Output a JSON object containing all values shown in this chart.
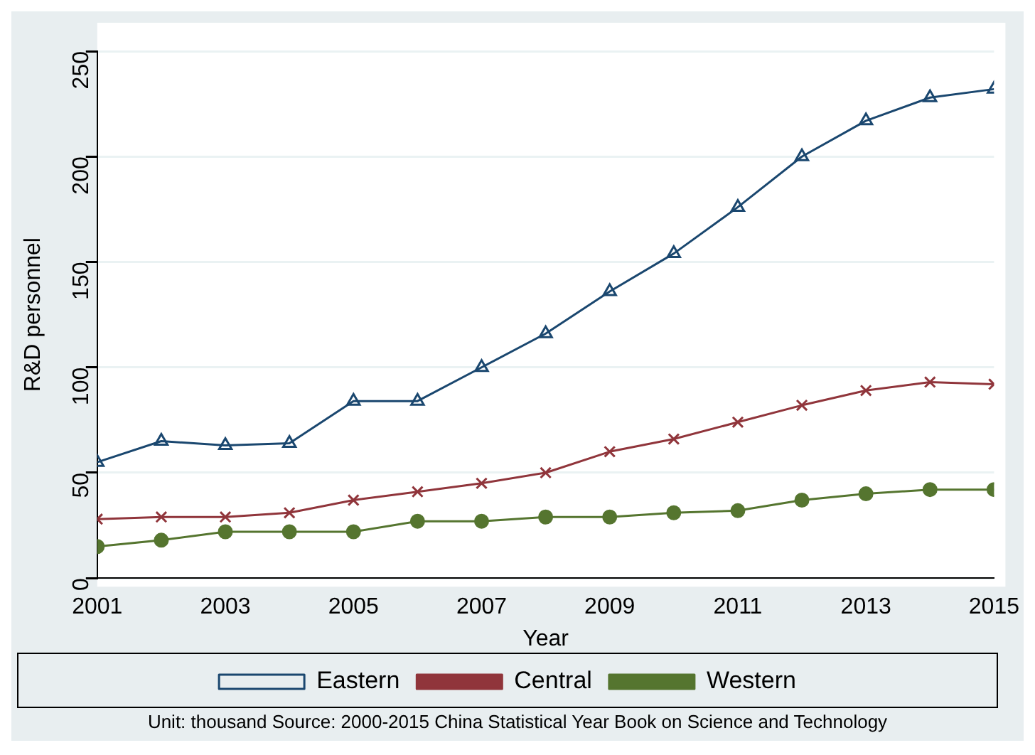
{
  "chart_data": {
    "type": "line",
    "xlabel": "Year",
    "ylabel": "R&D personnel",
    "x": [
      2001,
      2002,
      2003,
      2004,
      2005,
      2006,
      2007,
      2008,
      2009,
      2010,
      2011,
      2012,
      2013,
      2014,
      2015
    ],
    "xlim": [
      2001,
      2015
    ],
    "xticks": [
      2001,
      2003,
      2005,
      2007,
      2009,
      2011,
      2013,
      2015
    ],
    "ylim": [
      0,
      250
    ],
    "yticks": [
      0,
      50,
      100,
      150,
      200,
      250
    ],
    "grid": "y",
    "legend": "bottom",
    "line_style": "solid",
    "series": [
      {
        "name": "Eastern",
        "color": "#1a476f",
        "marker": "triangle",
        "values": [
          55,
          65,
          63,
          64,
          84,
          84,
          100,
          116,
          136,
          154,
          176,
          200,
          217,
          228,
          232
        ]
      },
      {
        "name": "Central",
        "color": "#90353b",
        "marker": "cross",
        "values": [
          28,
          29,
          29,
          31,
          37,
          41,
          45,
          50,
          60,
          66,
          74,
          82,
          89,
          93,
          92
        ]
      },
      {
        "name": "Western",
        "color": "#55752f",
        "marker": "circle",
        "values": [
          15,
          18,
          22,
          22,
          22,
          27,
          27,
          29,
          29,
          31,
          32,
          37,
          40,
          42,
          42
        ]
      }
    ],
    "annotations": [
      "Unit: thousand Source: 2000-2015 China Statistical Year Book on Science and Technology"
    ]
  }
}
